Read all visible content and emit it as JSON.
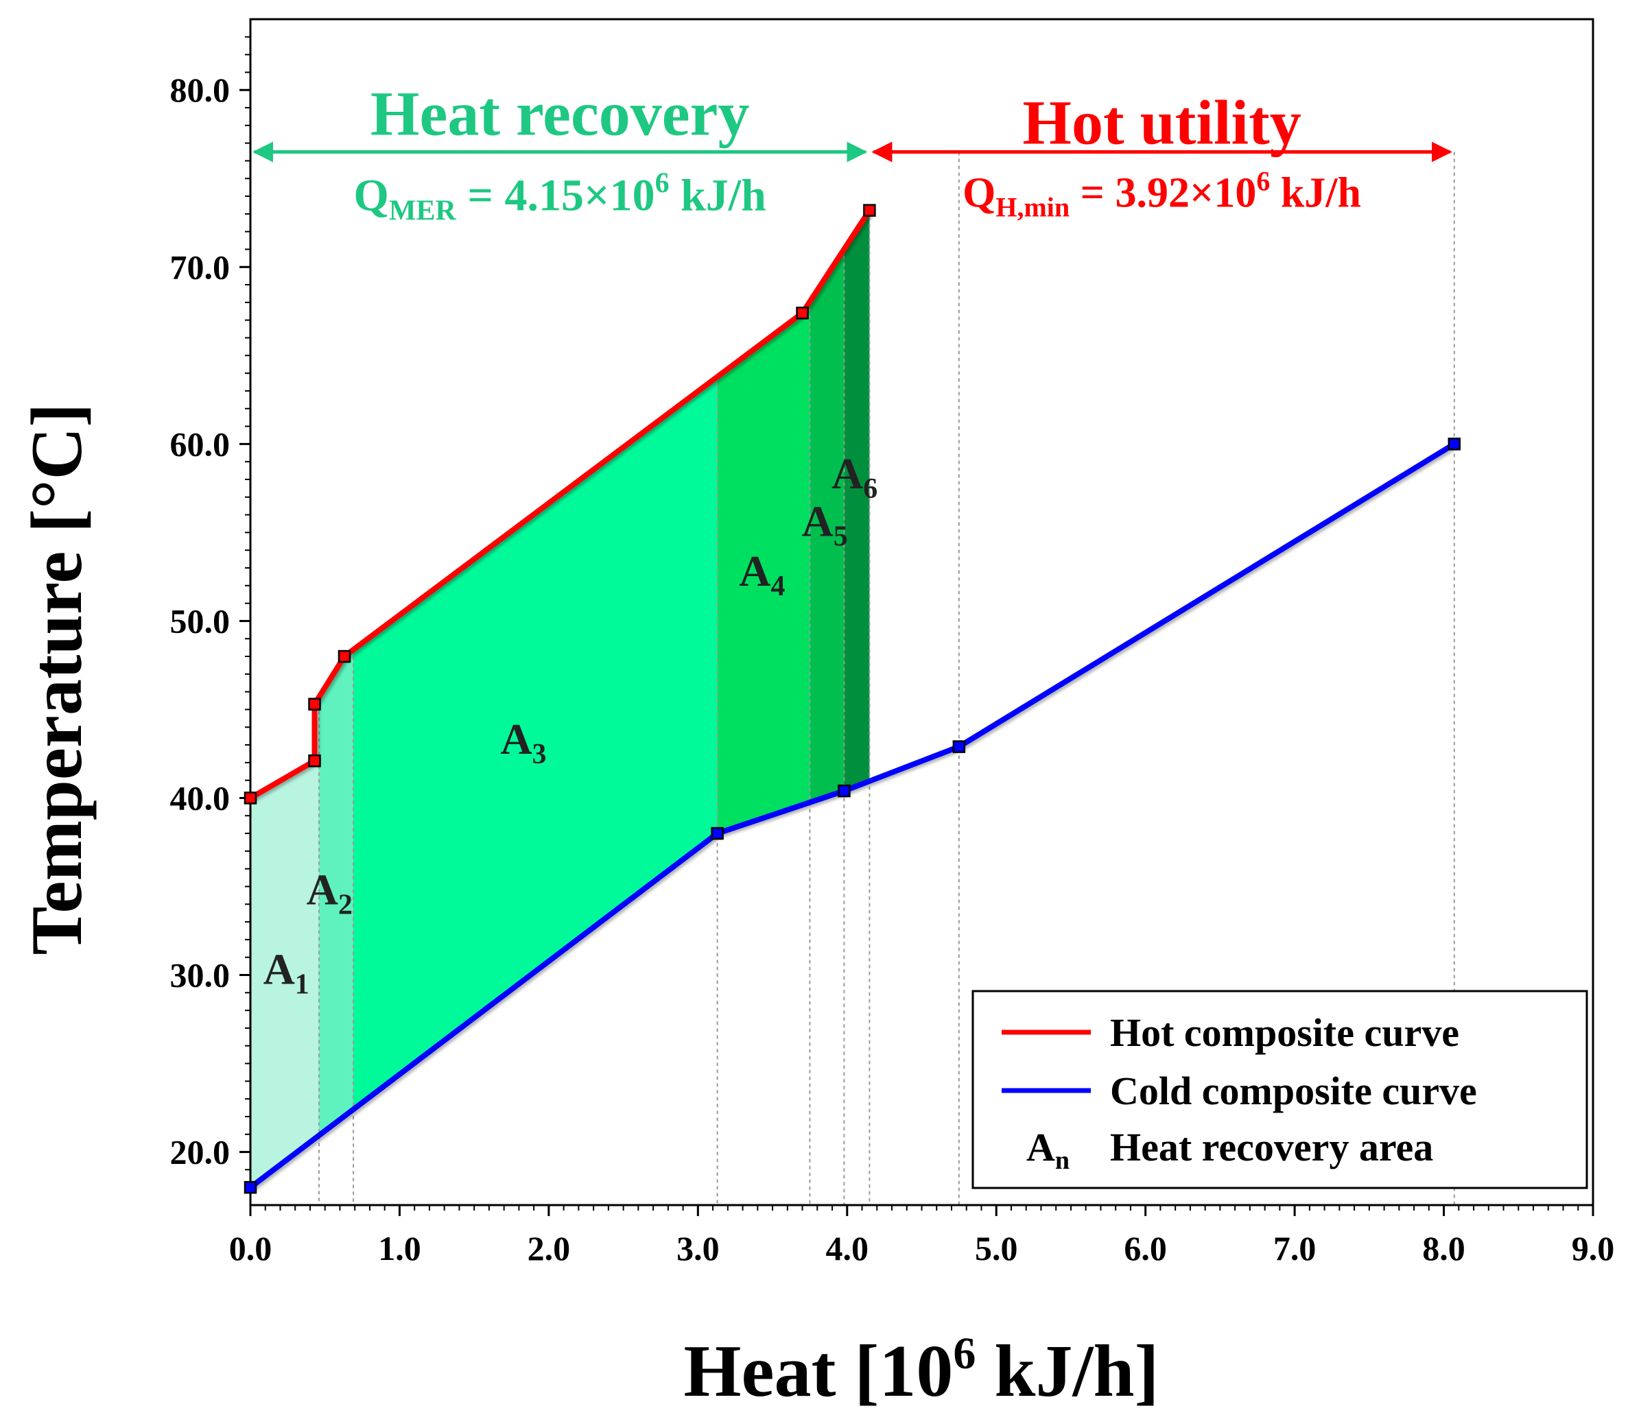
{
  "chart_data": {
    "type": "line",
    "title": "",
    "xlabel": "Heat [10",
    "xlabel_sup": "6",
    "xlabel_tail": " kJ/h]",
    "ylabel": "Temperature [°C]",
    "xlim": [
      0,
      9
    ],
    "ylim": [
      17,
      84
    ],
    "x_ticks": [
      0,
      1,
      2,
      3,
      4,
      5,
      6,
      7,
      8,
      9
    ],
    "x_tick_labels": [
      "0.0",
      "1.0",
      "2.0",
      "3.0",
      "4.0",
      "5.0",
      "6.0",
      "7.0",
      "8.0",
      "9.0"
    ],
    "y_ticks": [
      20,
      30,
      40,
      50,
      60,
      70,
      80
    ],
    "y_tick_labels": [
      "20.0",
      "30.0",
      "40.0",
      "50.0",
      "60.0",
      "70.0",
      "80.0"
    ],
    "series": [
      {
        "name": "Hot composite curve",
        "color": "#ff0000",
        "points": [
          [
            0.0,
            40.0
          ],
          [
            0.43,
            42.1
          ],
          [
            0.43,
            45.3
          ],
          [
            0.63,
            48.0
          ],
          [
            3.7,
            67.4
          ],
          [
            4.15,
            73.2
          ]
        ]
      },
      {
        "name": "Cold composite curve",
        "color": "#0000ff",
        "points": [
          [
            0.0,
            18.0
          ],
          [
            3.13,
            38.0
          ],
          [
            3.98,
            40.4
          ],
          [
            4.75,
            42.9
          ],
          [
            8.07,
            60.0
          ]
        ]
      }
    ],
    "areas": [
      {
        "name": "A",
        "sub": "1",
        "x_range": [
          0.0,
          0.46
        ],
        "color": "#b8f4df",
        "label_at": [
          0.24,
          29.5
        ]
      },
      {
        "name": "A",
        "sub": "2",
        "x_range": [
          0.46,
          0.69
        ],
        "color": "#5ff2be",
        "label_at": [
          0.53,
          34.0
        ]
      },
      {
        "name": "A",
        "sub": "3",
        "x_range": [
          0.69,
          3.13
        ],
        "color": "#00fa9a",
        "label_at": [
          1.83,
          42.5
        ]
      },
      {
        "name": "A",
        "sub": "4",
        "x_range": [
          3.13,
          3.75
        ],
        "color": "#00e060",
        "label_at": [
          3.43,
          52.0
        ]
      },
      {
        "name": "A",
        "sub": "5",
        "x_range": [
          3.75,
          3.98
        ],
        "color": "#00bf4e",
        "label_at": [
          3.85,
          54.8
        ]
      },
      {
        "name": "A",
        "sub": "6",
        "x_range": [
          3.98,
          4.15
        ],
        "color": "#00903d",
        "label_at": [
          4.05,
          57.5
        ]
      }
    ],
    "guide_lines_x": [
      0.46,
      0.69,
      3.13,
      3.75,
      3.98,
      4.15,
      4.75,
      8.07
    ],
    "annotations": {
      "heat_recovery": {
        "title": "Heat recovery",
        "q_main": "Q",
        "q_sub": "MER",
        "q_value": " = 4.15×10",
        "q_sup": "6",
        "q_unit": " kJ/h",
        "color": "#1ec882",
        "x_range": [
          0.0,
          4.15
        ]
      },
      "hot_utility": {
        "title": "Hot utility",
        "q_main": "Q",
        "q_sub": "H,min",
        "q_value": " = 3.92×10",
        "q_sup": "6",
        "q_unit": " kJ/h",
        "color": "#ff0000",
        "x_range": [
          4.15,
          8.07
        ]
      }
    },
    "legend": {
      "position": "bottom-right",
      "entries": [
        {
          "label": "Hot composite curve",
          "color": "#ff0000",
          "marker": "line"
        },
        {
          "label": "Cold composite curve",
          "color": "#0000ff",
          "marker": "line"
        },
        {
          "label": "Heat recovery area",
          "marker": "text",
          "marker_text": "A",
          "marker_sub": "n"
        }
      ]
    }
  }
}
